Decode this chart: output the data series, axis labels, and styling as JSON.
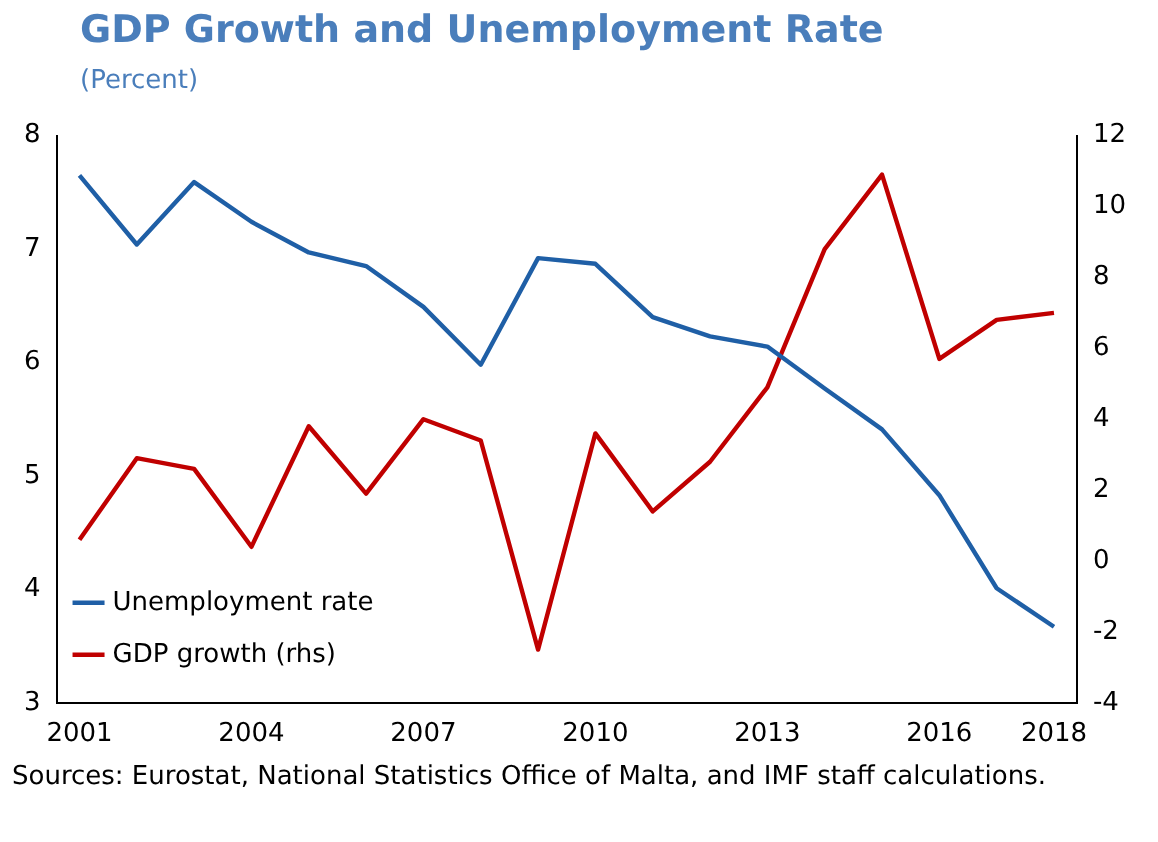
{
  "chart_data": {
    "type": "line",
    "title": "GDP Growth and Unemployment Rate",
    "subtitle": "(Percent)",
    "x": [
      2001,
      2002,
      2003,
      2004,
      2005,
      2006,
      2007,
      2008,
      2009,
      2010,
      2011,
      2012,
      2013,
      2014,
      2015,
      2016,
      2017,
      2018
    ],
    "series": [
      {
        "name": "Unemployment rate",
        "color": "#1f5fa6",
        "values": [
          7.65,
          7.04,
          7.59,
          7.24,
          6.97,
          6.85,
          6.49,
          5.98,
          6.92,
          6.87,
          6.4,
          6.23,
          6.14,
          5.77,
          5.41,
          4.83,
          4.01,
          3.67
        ]
      },
      {
        "name": "GDP growth (rhs)",
        "color": "#c00000",
        "axis": "y2",
        "values": [
          0.6,
          2.9,
          2.6,
          0.4,
          3.8,
          1.9,
          4.0,
          3.4,
          -2.5,
          3.6,
          1.4,
          2.8,
          4.9,
          8.8,
          10.9,
          5.7,
          6.8,
          7.0
        ]
      }
    ],
    "xlim": [
      2000.6,
      2018.4
    ],
    "xticks": [
      2001,
      2004,
      2007,
      2010,
      2013,
      2016,
      2018
    ],
    "ylim": [
      3,
      8
    ],
    "yticks": [
      3,
      4,
      5,
      6,
      7,
      8
    ],
    "y2lim": [
      -4,
      12
    ],
    "y2ticks": [
      -4,
      -2,
      0,
      2,
      4,
      6,
      8,
      10,
      12
    ],
    "grid": false,
    "legend": "bottom left",
    "marker": "none",
    "line_style": "solid",
    "annotations": [
      "Sources: Eurostat, National Statistics Office of Malta, and IMF staff calculations."
    ]
  }
}
